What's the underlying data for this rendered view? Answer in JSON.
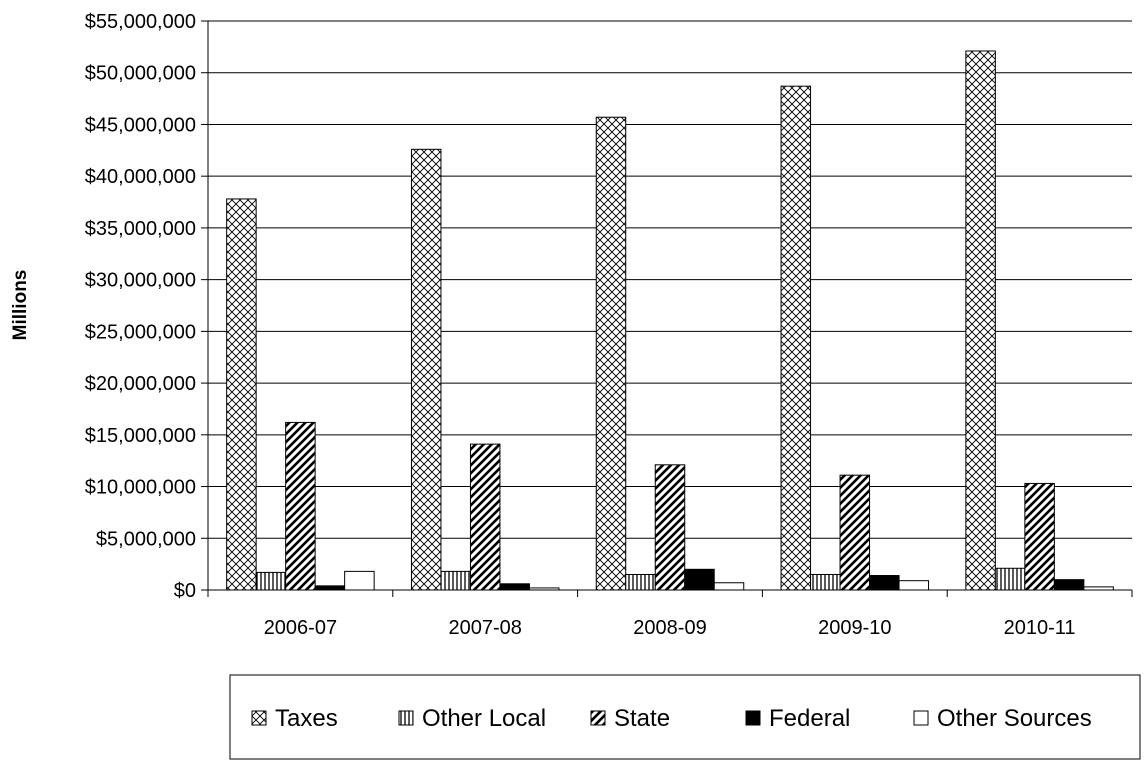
{
  "chart_data": {
    "type": "bar",
    "ylabel": "Millions",
    "xlabel": "",
    "ylim": [
      0,
      55000000
    ],
    "ytick_step": 5000000,
    "ytick_labels": [
      "$0",
      "$5,000,000",
      "$10,000,000",
      "$15,000,000",
      "$20,000,000",
      "$25,000,000",
      "$30,000,000",
      "$35,000,000",
      "$40,000,000",
      "$45,000,000",
      "$50,000,000",
      "$55,000,000"
    ],
    "grid": true,
    "legend_position": "bottom",
    "categories": [
      "2006-07",
      "2007-08",
      "2008-09",
      "2009-10",
      "2010-11"
    ],
    "series": [
      {
        "name": "Taxes",
        "values": [
          37800000,
          42600000,
          45700000,
          48700000,
          52100000
        ],
        "fill": "crosshatch"
      },
      {
        "name": "Other Local",
        "values": [
          1700000,
          1800000,
          1500000,
          1500000,
          2100000
        ],
        "fill": "vertical-lines"
      },
      {
        "name": "State",
        "values": [
          16200000,
          14100000,
          12100000,
          11100000,
          10300000
        ],
        "fill": "diagonal-stripes"
      },
      {
        "name": "Federal",
        "values": [
          400000,
          600000,
          2000000,
          1400000,
          1000000
        ],
        "fill": "solid-black"
      },
      {
        "name": "Other Sources",
        "values": [
          1800000,
          200000,
          700000,
          900000,
          300000
        ],
        "fill": "white"
      }
    ]
  }
}
